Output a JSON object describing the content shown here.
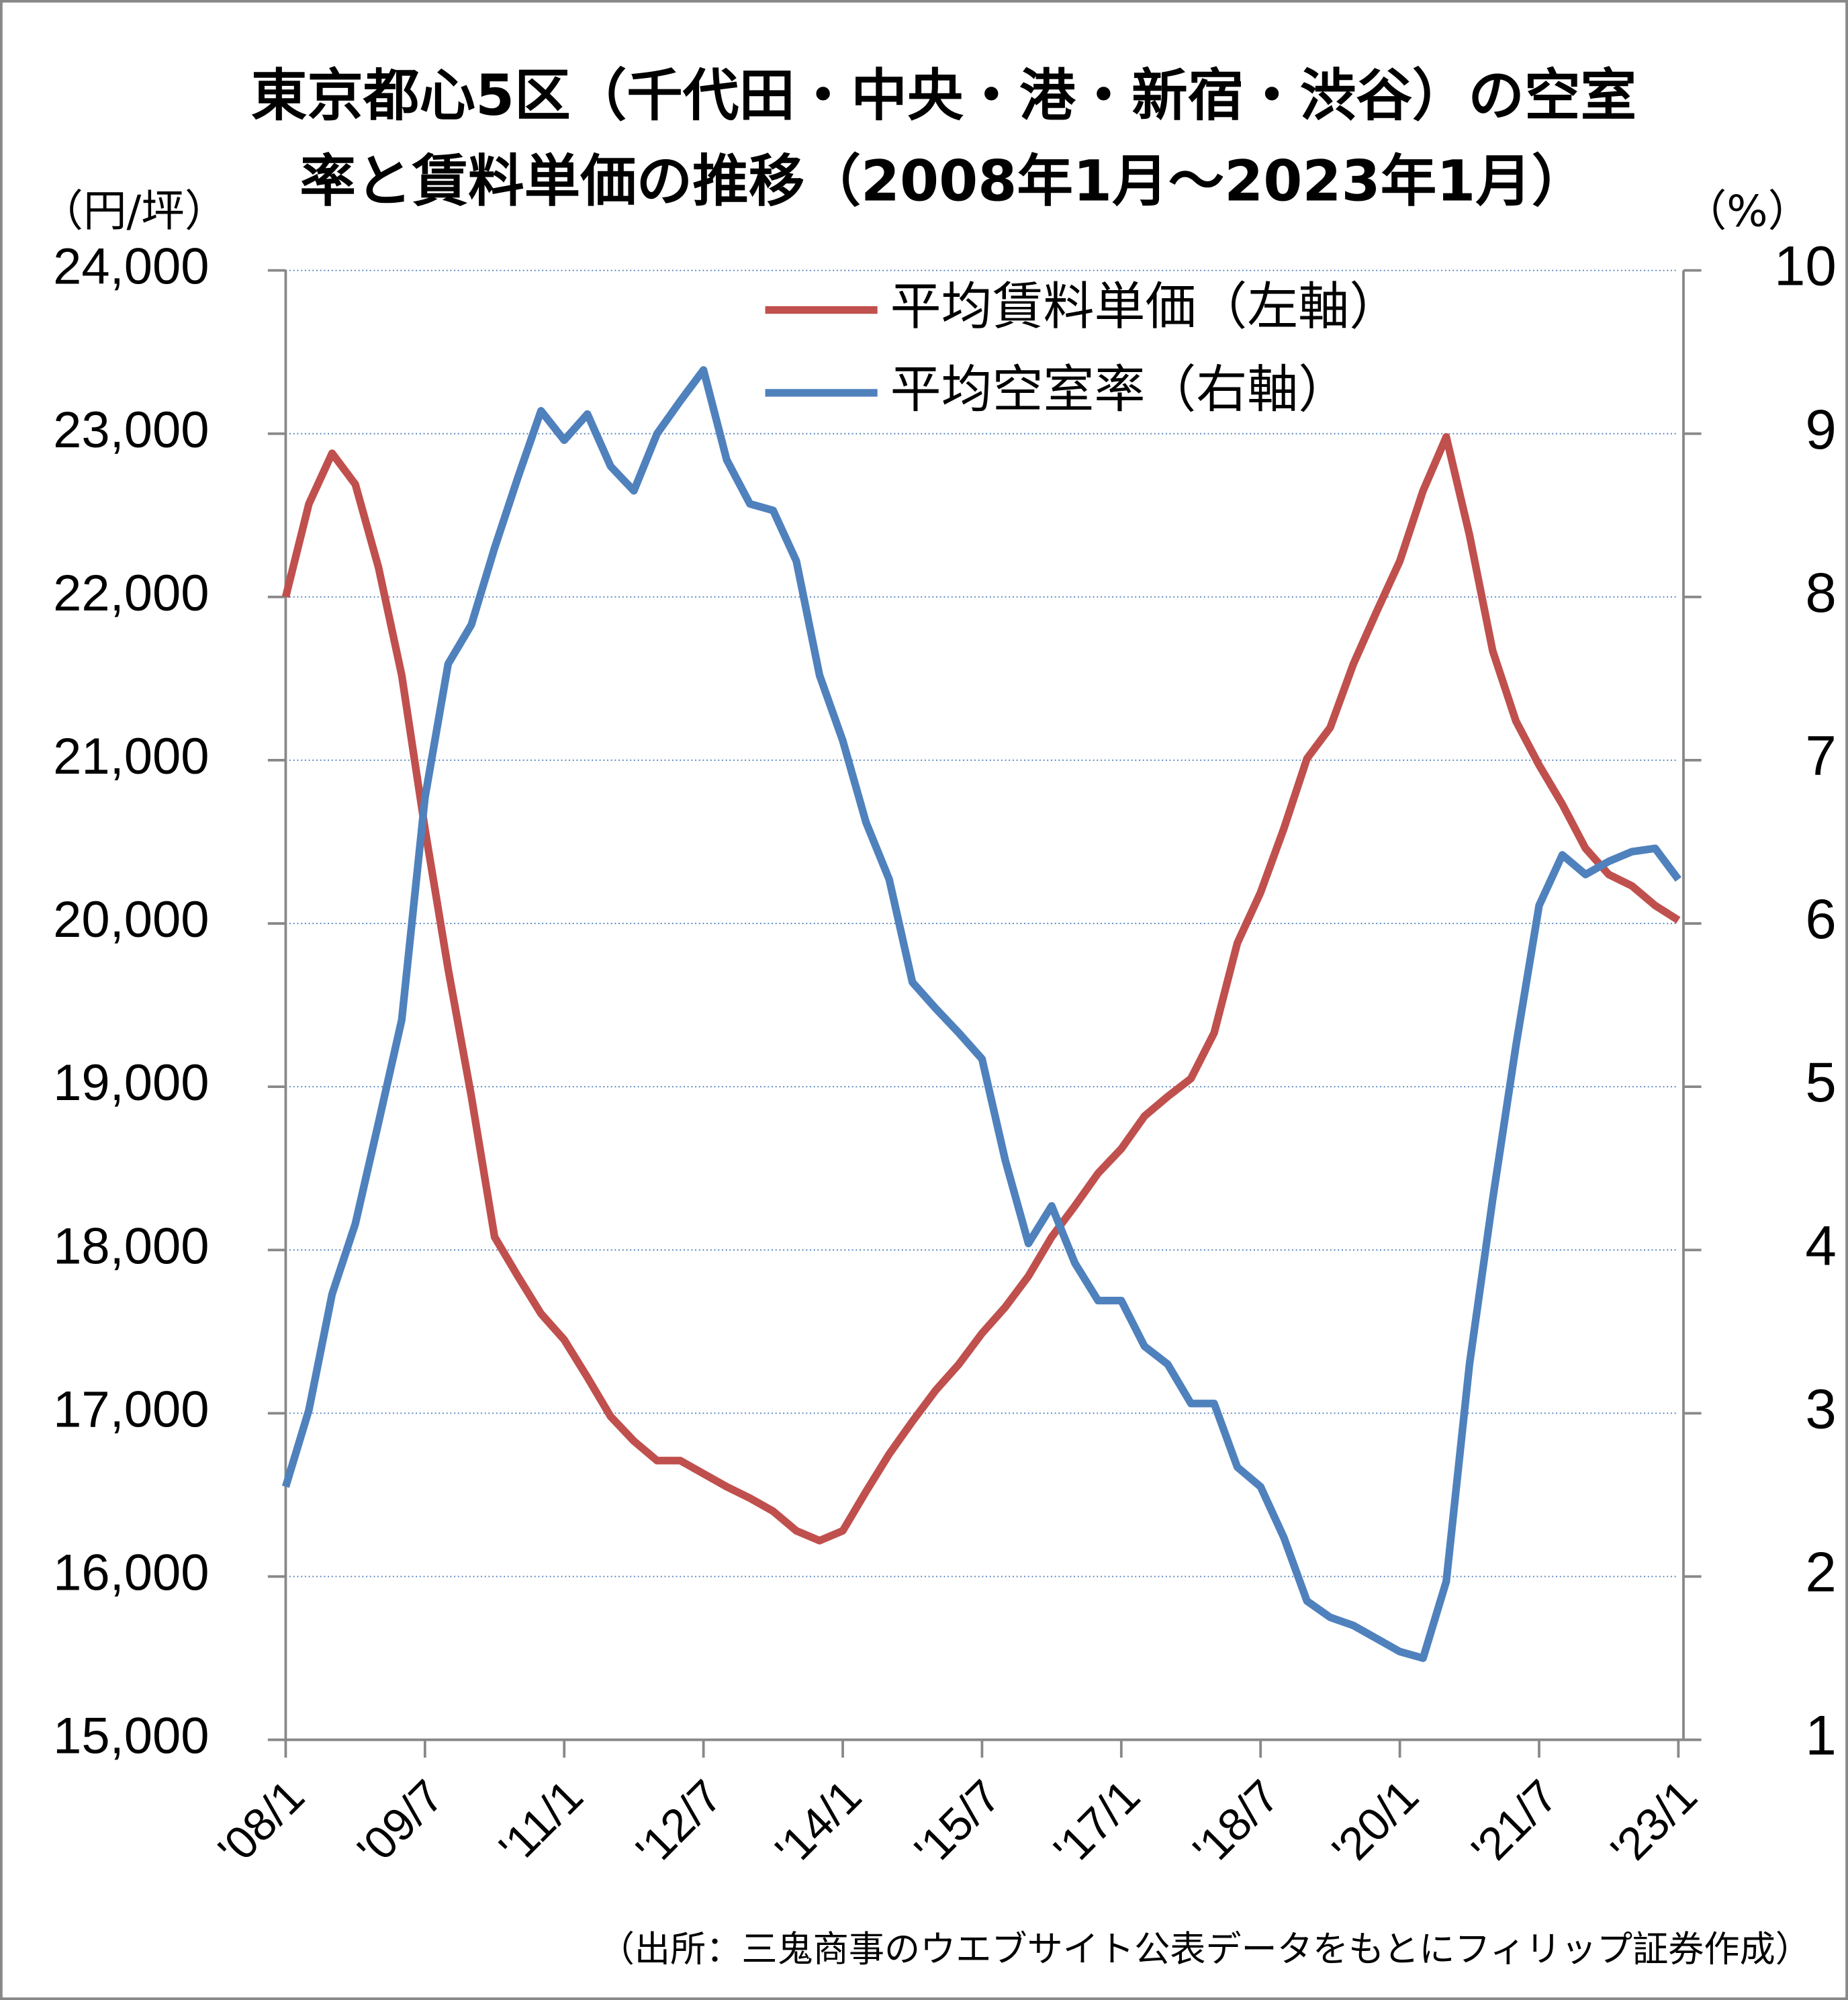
{
  "chart_data": {
    "type": "line",
    "title": [
      "東京都心5区（千代田・中央・港・新宿・渋谷）の空室",
      "率と賃料単価の推移（2008年1月～2023年1月）"
    ],
    "y_label": "（円/坪）",
    "y2_label": "（%）",
    "source": "（出所：三鬼商事のウエブサイト公表データをもとにフィリップ証券作成）",
    "x": [
      "2008/1",
      "2008/4",
      "2008/7",
      "2008/10",
      "2009/1",
      "2009/4",
      "2009/7",
      "2009/10",
      "2010/1",
      "2010/4",
      "2010/7",
      "2010/10",
      "2011/1",
      "2011/4",
      "2011/7",
      "2011/10",
      "2012/1",
      "2012/4",
      "2012/7",
      "2012/10",
      "2013/1",
      "2013/4",
      "2013/7",
      "2013/10",
      "2014/1",
      "2014/4",
      "2014/7",
      "2014/10",
      "2015/1",
      "2015/4",
      "2015/7",
      "2015/10",
      "2016/1",
      "2016/4",
      "2016/7",
      "2016/10",
      "2017/1",
      "2017/4",
      "2017/7",
      "2017/10",
      "2018/1",
      "2018/4",
      "2018/7",
      "2018/10",
      "2019/1",
      "2019/4",
      "2019/7",
      "2019/10",
      "2020/1",
      "2020/4",
      "2020/7",
      "2020/10",
      "2021/1",
      "2021/4",
      "2021/7",
      "2021/10",
      "2022/1",
      "2022/4",
      "2022/7",
      "2022/10",
      "2023/1"
    ],
    "xlim": [
      "2008/1",
      "2023/1"
    ],
    "xticks": [
      {
        "value": "2008/1",
        "label": "'08/1"
      },
      {
        "value": "2009/7",
        "label": "'09/7"
      },
      {
        "value": "2011/1",
        "label": "'11/1"
      },
      {
        "value": "2012/7",
        "label": "'12/7"
      },
      {
        "value": "2014/1",
        "label": "'14/1"
      },
      {
        "value": "2015/7",
        "label": "'15/7"
      },
      {
        "value": "2017/1",
        "label": "'17/1"
      },
      {
        "value": "2018/7",
        "label": "'18/7"
      },
      {
        "value": "2020/1",
        "label": "'20/1"
      },
      {
        "value": "2021/7",
        "label": "'21/7"
      },
      {
        "value": "2023/1",
        "label": "'23/1"
      }
    ],
    "ylim": [
      15000,
      24000
    ],
    "yticks": [
      {
        "value": 15000,
        "label": "15,000"
      },
      {
        "value": 16000,
        "label": "16,000"
      },
      {
        "value": 17000,
        "label": "17,000"
      },
      {
        "value": 18000,
        "label": "18,000"
      },
      {
        "value": 19000,
        "label": "19,000"
      },
      {
        "value": 20000,
        "label": "20,000"
      },
      {
        "value": 21000,
        "label": "21,000"
      },
      {
        "value": 22000,
        "label": "22,000"
      },
      {
        "value": 23000,
        "label": "23,000"
      },
      {
        "value": 24000,
        "label": "24,000"
      }
    ],
    "y2lim": [
      1,
      10
    ],
    "y2ticks": [
      1,
      2,
      3,
      4,
      5,
      6,
      7,
      8,
      9,
      10
    ],
    "grid": true,
    "series": [
      {
        "name": "平均賃料単価（左軸）",
        "color": "#c0504d",
        "values": [
          22000,
          22570,
          22880,
          22690,
          22180,
          21520,
          20580,
          19720,
          18940,
          18080,
          17840,
          17610,
          17450,
          17220,
          16980,
          16830,
          16710,
          16710,
          16630,
          16550,
          16480,
          16400,
          16280,
          16220,
          16280,
          16520,
          16750,
          16950,
          17140,
          17300,
          17490,
          17650,
          17840,
          18080,
          18270,
          18470,
          18620,
          18820,
          18940,
          19050,
          19330,
          19880,
          20190,
          20580,
          21010,
          21200,
          21590,
          21910,
          22220,
          22650,
          22980,
          22380,
          21670,
          21240,
          20970,
          20730,
          20460,
          20300,
          20230,
          20110,
          20020
        ]
      },
      {
        "name": "平均空室率（右軸）",
        "color": "#4f81bd",
        "axis": "y2",
        "values": [
          2.55,
          3.02,
          3.73,
          4.16,
          4.78,
          5.41,
          6.77,
          7.59,
          7.83,
          8.3,
          8.73,
          9.14,
          8.96,
          9.12,
          8.8,
          8.65,
          9.0,
          9.2,
          9.39,
          8.84,
          8.57,
          8.53,
          8.22,
          7.52,
          7.12,
          6.62,
          6.27,
          5.64,
          5.48,
          5.33,
          5.17,
          4.55,
          4.04,
          4.27,
          3.92,
          3.69,
          3.69,
          3.41,
          3.3,
          3.06,
          3.06,
          2.67,
          2.55,
          2.24,
          1.85,
          1.75,
          1.7,
          1.62,
          1.54,
          1.5,
          1.97,
          3.3,
          4.31,
          5.25,
          6.11,
          6.42,
          6.3,
          6.38,
          6.44,
          6.46,
          6.27
        ]
      }
    ]
  }
}
